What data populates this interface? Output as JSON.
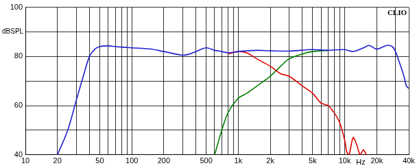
{
  "chart_data": {
    "type": "line",
    "ylabel": "dBSPL",
    "xlabel": "Hz",
    "annotations": [
      "CLIO"
    ],
    "log": "x",
    "grid": true,
    "xlim": [
      10,
      40000
    ],
    "ylim": [
      40,
      100
    ],
    "xticks": [
      10,
      20,
      {
        "value": 30,
        "label": null
      },
      {
        "value": 40,
        "label": null
      },
      50,
      {
        "value": 60,
        "label": null
      },
      {
        "value": 70,
        "label": null
      },
      {
        "value": 80,
        "label": null
      },
      {
        "value": 90,
        "label": null
      },
      100,
      200,
      {
        "value": 300,
        "label": null
      },
      {
        "value": 400,
        "label": null
      },
      500,
      {
        "value": 600,
        "label": null
      },
      {
        "value": 700,
        "label": null
      },
      {
        "value": 800,
        "label": null
      },
      {
        "value": 900,
        "label": null
      },
      {
        "value": 1000,
        "label": "1k"
      },
      {
        "value": 2000,
        "label": "2k"
      },
      {
        "value": 3000,
        "label": null
      },
      {
        "value": 4000,
        "label": null
      },
      {
        "value": 5000,
        "label": "5k"
      },
      {
        "value": 6000,
        "label": null
      },
      {
        "value": 7000,
        "label": null
      },
      {
        "value": 8000,
        "label": null
      },
      {
        "value": 9000,
        "label": null
      },
      {
        "value": 10000,
        "label": "10k"
      },
      {
        "value": 20000,
        "label": "20k"
      },
      {
        "value": 30000,
        "label": null
      },
      {
        "value": 40000,
        "label": "40k"
      }
    ],
    "yticks": [
      40,
      {
        "value": 50,
        "label": null
      },
      60,
      {
        "value": 70,
        "label": null
      },
      80,
      {
        "value": 90,
        "label": null
      },
      100
    ],
    "series": [
      {
        "color": "#2020d0",
        "x": [
          20,
          25,
          30,
          35,
          40,
          45,
          50,
          60,
          70,
          100,
          150,
          200,
          300,
          350,
          400,
          500,
          600,
          700,
          800,
          1000,
          1500,
          2000,
          3000,
          5000,
          7000,
          10000,
          12000,
          15000,
          17000,
          20000,
          25000,
          28000,
          30000,
          33000,
          36000,
          38000,
          40000
        ],
        "values": [
          40,
          50,
          62,
          72,
          80,
          83,
          84,
          84.3,
          84,
          83.5,
          83,
          82,
          80.5,
          81,
          82,
          83.5,
          82.5,
          82,
          81.5,
          82,
          82.5,
          82.3,
          82.2,
          82.8,
          82.5,
          82.8,
          82,
          83.5,
          84.5,
          83,
          84.5,
          84,
          82,
          77,
          72,
          68,
          67
        ]
      },
      {
        "color": "#e00000",
        "x": [
          800,
          1000,
          1200,
          1500,
          2000,
          2500,
          3000,
          4000,
          5000,
          6000,
          7000,
          8000,
          9000,
          10000,
          10500,
          11000,
          12000,
          13000,
          14000,
          15000,
          16000
        ],
        "values": [
          81,
          82,
          81.5,
          79,
          76,
          73,
          72,
          68,
          65,
          61,
          60,
          57,
          53,
          46,
          41,
          40,
          47,
          44,
          40,
          42,
          40
        ]
      },
      {
        "color": "#008000",
        "x": [
          600,
          700,
          800,
          1000,
          1200,
          1500,
          2000,
          2500,
          3000,
          4000,
          5000,
          7000
        ],
        "values": [
          40,
          50,
          57,
          63,
          65,
          68,
          72,
          76,
          79,
          81,
          82,
          82.5
        ]
      }
    ]
  }
}
